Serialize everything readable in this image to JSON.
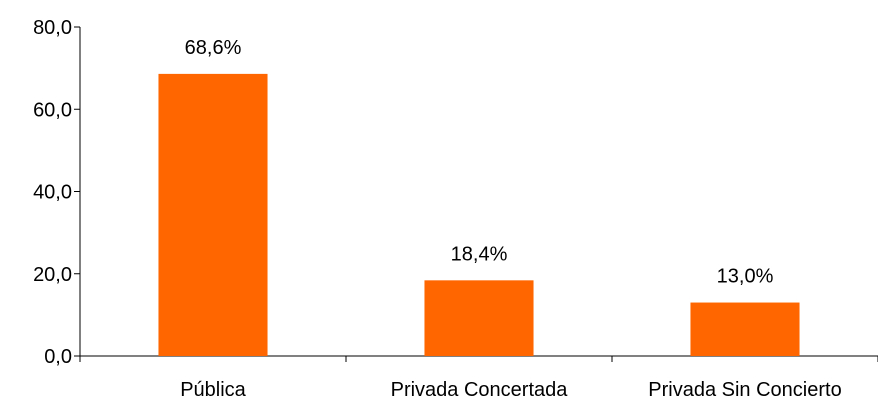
{
  "chart_data": {
    "type": "bar",
    "categories": [
      "Pública",
      "Privada Concertada",
      "Privada Sin Concierto"
    ],
    "values": [
      68.6,
      18.4,
      13.0
    ],
    "data_labels": [
      "68,6%",
      "18,4%",
      "13,0%"
    ],
    "title": "",
    "xlabel": "",
    "ylabel": "",
    "ylim": [
      0,
      80
    ],
    "yticks": [
      0,
      20,
      40,
      60,
      80
    ],
    "ytick_labels": [
      "0,0",
      "20,0",
      "40,0",
      "60,0",
      "80,0"
    ],
    "grid": false,
    "legend": "none",
    "bar_color": "#FF6600"
  }
}
